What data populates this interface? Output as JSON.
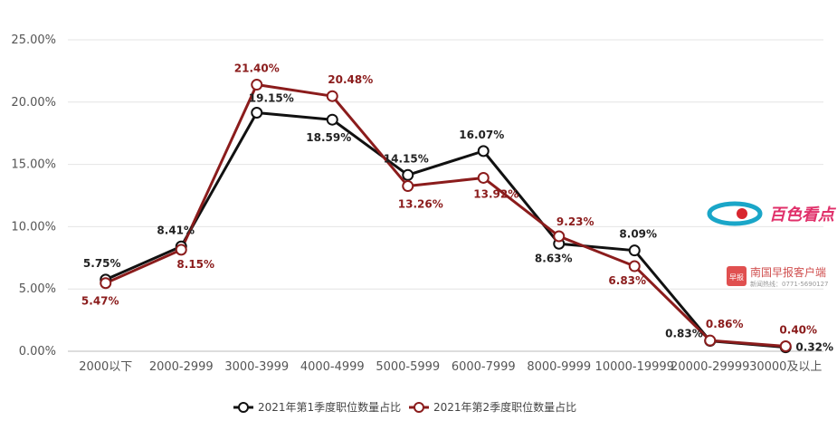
{
  "chart_data": {
    "type": "line",
    "title": "",
    "xlabel": "",
    "ylabel": "",
    "ylim": [
      0,
      25
    ],
    "y_ticks": [
      "0.00%",
      "5.00%",
      "10.00%",
      "15.00%",
      "20.00%",
      "25.00%"
    ],
    "grid": true,
    "legend_position": "bottom",
    "categories": [
      "2000以下",
      "2000-2999",
      "3000-3999",
      "4000-4999",
      "5000-5999",
      "6000-7999",
      "8000-9999",
      "10000-19999",
      "20000-29999",
      "30000及以上"
    ],
    "series": [
      {
        "name": "2021年第1季度职位数量占比",
        "color": "#111111",
        "values": [
          5.75,
          8.41,
          19.15,
          18.59,
          14.15,
          16.07,
          8.63,
          8.09,
          0.83,
          0.32
        ],
        "labels": [
          "5.75%",
          "8.41%",
          "19.15%",
          "18.59%",
          "14.15%",
          "16.07%",
          "8.63%",
          "8.09%",
          "0.83%",
          "0.32%"
        ]
      },
      {
        "name": "2021年第2季度职位数量占比",
        "color": "#8b1c1c",
        "values": [
          5.47,
          8.15,
          21.4,
          20.48,
          13.26,
          13.92,
          9.23,
          6.83,
          0.86,
          0.4
        ],
        "labels": [
          "5.47%",
          "8.15%",
          "21.40%",
          "20.48%",
          "13.26%",
          "13.92%",
          "9.23%",
          "6.83%",
          "0.86%",
          "0.40%"
        ]
      }
    ]
  },
  "watermarks": {
    "logo_text": "百色看点",
    "source_name": "南国早报客户端",
    "badge_text": "早报",
    "hotline": "新闻热线：0771-5690127"
  }
}
